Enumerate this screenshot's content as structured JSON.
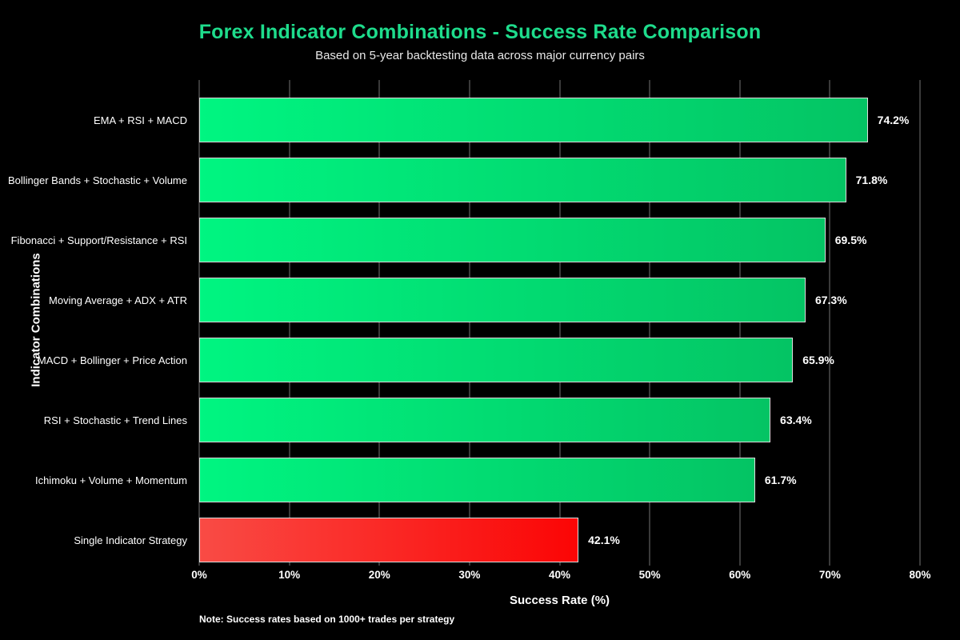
{
  "header": {
    "title": "Forex Indicator Combinations - Success Rate Comparison",
    "subtitle": "Based on 5-year backtesting data across major currency pairs"
  },
  "chart_data": {
    "type": "bar",
    "orientation": "horizontal",
    "title": "Forex Indicator Combinations - Success Rate Comparison",
    "subtitle": "Based on 5-year backtesting data across major currency pairs",
    "categories": [
      "EMA + RSI + MACD",
      "Bollinger Bands + Stochastic + Volume",
      "Fibonacci + Support/Resistance + RSI",
      "Moving Average + ADX + ATR",
      "MACD + Bollinger + Price Action",
      "RSI + Stochastic + Trend Lines",
      "Ichimoku + Volume + Momentum",
      "Single Indicator Strategy"
    ],
    "values": [
      74.2,
      71.8,
      69.5,
      67.3,
      65.9,
      63.4,
      61.7,
      42.1
    ],
    "value_labels": [
      "74.2%",
      "71.8%",
      "69.5%",
      "67.3%",
      "65.9%",
      "63.4%",
      "61.7%",
      "42.1%"
    ],
    "bar_color_keys": [
      "green",
      "green",
      "green",
      "green",
      "green",
      "green",
      "green",
      "red"
    ],
    "xlabel": "Success Rate (%)",
    "ylabel": "Indicator Combinations",
    "xlim": [
      0,
      80
    ],
    "xticks": [
      0,
      10,
      20,
      30,
      40,
      50,
      60,
      70,
      80
    ],
    "xtick_labels": [
      "0%",
      "10%",
      "20%",
      "30%",
      "40%",
      "50%",
      "60%",
      "70%",
      "80%"
    ],
    "grid": "vertical",
    "legend": false,
    "note": "Note: Success rates based on 1000+ trades per strategy",
    "colors": {
      "background": "#000000",
      "title": "#1EDC8C",
      "subtitle": "#E8E8E8",
      "text": "#FFFFFF",
      "gridline": "#3A3A3A",
      "bar_border": "#DCDCDC",
      "green_bar_gradient": [
        "#00F581",
        "#04C464"
      ],
      "red_bar_gradient": [
        "#F94B45",
        "#FB0505"
      ]
    }
  }
}
